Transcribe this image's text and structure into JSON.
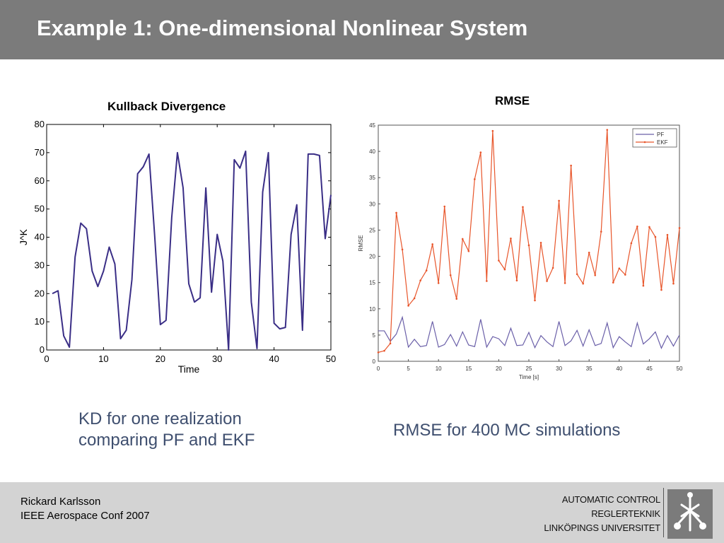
{
  "slide": {
    "title": "Example 1: One-dimensional Nonlinear System",
    "footer_author": "Rickard Karlsson",
    "footer_conference": "IEEE Aerospace Conf 2007",
    "org": [
      "AUTOMATIC CONTROL",
      "REGLERTEKNIK",
      "LINKÖPINGS UNIVERSITET"
    ],
    "logo_icon": "liu-logo-icon"
  },
  "captions": {
    "left": [
      "KD for one realization",
      "comparing PF and EKF"
    ],
    "right": "RMSE for 400 MC simulations"
  },
  "chart_data": [
    {
      "type": "line",
      "title": "Kullback Divergence",
      "xlabel": "Time",
      "ylabel": "J^K",
      "xlim": [
        0,
        50
      ],
      "ylim": [
        0,
        80
      ],
      "xticks": [
        0,
        10,
        20,
        30,
        40,
        50
      ],
      "yticks": [
        0,
        10,
        20,
        30,
        40,
        50,
        60,
        70,
        80
      ],
      "grid": false,
      "color": "#3a2e86",
      "x": [
        1,
        2,
        3,
        4,
        5,
        6,
        7,
        8,
        9,
        10,
        11,
        12,
        13,
        14,
        15,
        16,
        17,
        18,
        19,
        20,
        21,
        22,
        23,
        24,
        25,
        26,
        27,
        28,
        29,
        30,
        31,
        32,
        33,
        34,
        35,
        36,
        37,
        38,
        39,
        40,
        41,
        42,
        43,
        44,
        45,
        46,
        47,
        48,
        49,
        50
      ],
      "values": [
        20,
        21,
        5,
        1,
        33,
        45,
        43,
        28,
        22.5,
        28,
        36.5,
        30.5,
        4,
        7,
        25,
        62.5,
        65,
        69.5,
        40.5,
        9,
        10.5,
        47,
        70,
        57.5,
        23.5,
        17,
        18.5,
        57.5,
        20.5,
        41,
        31.5,
        0,
        67.5,
        64.5,
        70.5,
        17,
        0.5,
        56,
        70,
        9.5,
        7.5,
        8,
        41,
        51.5,
        7,
        69.5,
        69.5,
        69,
        39.5,
        55
      ]
    },
    {
      "type": "line",
      "title": "RMSE",
      "xlabel": "Time [s]",
      "ylabel": "RMSE",
      "xlim": [
        0,
        50
      ],
      "ylim": [
        0,
        45
      ],
      "xticks": [
        0,
        5,
        10,
        15,
        20,
        25,
        30,
        35,
        40,
        45,
        50
      ],
      "yticks": [
        0,
        5,
        10,
        15,
        20,
        25,
        30,
        35,
        40,
        45
      ],
      "grid": false,
      "legend": "top-right",
      "x": [
        0,
        1,
        2,
        3,
        4,
        5,
        6,
        7,
        8,
        9,
        10,
        11,
        12,
        13,
        14,
        15,
        16,
        17,
        18,
        19,
        20,
        21,
        22,
        23,
        24,
        25,
        26,
        27,
        28,
        29,
        30,
        31,
        32,
        33,
        34,
        35,
        36,
        37,
        38,
        39,
        40,
        41,
        42,
        43,
        44,
        45,
        46,
        47,
        48,
        49,
        50
      ],
      "series": [
        {
          "name": "PF",
          "color": "#6a5fa8",
          "values": [
            5.8,
            5.8,
            3.8,
            5.2,
            8.4,
            2.7,
            4.2,
            2.8,
            3.0,
            7.6,
            2.7,
            3.2,
            5.1,
            2.9,
            5.6,
            3.1,
            2.8,
            8.0,
            2.7,
            4.7,
            4.3,
            3.0,
            6.3,
            3.0,
            3.1,
            5.5,
            2.6,
            4.9,
            3.7,
            2.8,
            7.6,
            3.0,
            3.9,
            5.9,
            2.9,
            6.0,
            3.0,
            3.4,
            7.3,
            2.6,
            4.7,
            3.7,
            2.8,
            7.3,
            3.3,
            4.3,
            5.6,
            2.5,
            4.9,
            2.9,
            5.0
          ]
        },
        {
          "name": "EKF",
          "color": "#e8552a",
          "values": [
            1.7,
            2.0,
            3.4,
            28.3,
            21.3,
            10.6,
            12.0,
            15.4,
            17.3,
            22.3,
            14.9,
            29.5,
            16.4,
            11.9,
            23.3,
            21.0,
            34.7,
            39.8,
            15.3,
            43.9,
            19.2,
            17.5,
            23.4,
            15.4,
            29.4,
            22.1,
            11.6,
            22.6,
            15.3,
            17.8,
            30.6,
            14.9,
            37.3,
            16.6,
            14.8,
            20.7,
            16.4,
            24.7,
            44.1,
            15.0,
            17.7,
            16.5,
            22.5,
            25.7,
            14.4,
            25.6,
            23.7,
            13.6,
            24.1,
            14.8,
            25.4
          ]
        }
      ]
    }
  ]
}
